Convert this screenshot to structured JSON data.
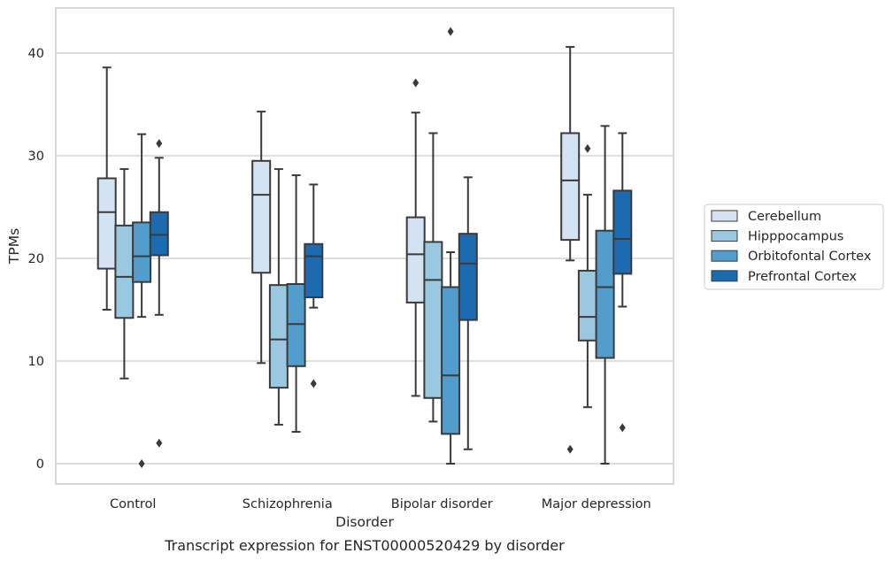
{
  "caption": "Transcript expression for ENST00000520429 by disorder",
  "chart_data": {
    "type": "boxplot",
    "xlabel": "Disorder",
    "ylabel": "TPMs",
    "ylim": [
      -2,
      44.5
    ],
    "yticks": [
      0,
      10,
      20,
      30,
      40
    ],
    "grid": true,
    "legend_position": "right",
    "categories": [
      "Control",
      "Schizophrenia",
      "Bipolar disorder",
      "Major depression"
    ],
    "series": [
      {
        "name": "Cerebellum",
        "color": "#d3e3f3",
        "boxes": [
          {
            "whislo": 15.0,
            "q1": 19.0,
            "med": 24.5,
            "q3": 27.8,
            "whishi": 38.6,
            "fliers": []
          },
          {
            "whislo": 9.8,
            "q1": 18.6,
            "med": 26.2,
            "q3": 29.5,
            "whishi": 34.3,
            "fliers": []
          },
          {
            "whislo": 6.6,
            "q1": 15.7,
            "med": 20.4,
            "q3": 24.0,
            "whishi": 34.2,
            "fliers": [
              37.1
            ]
          },
          {
            "whislo": 19.8,
            "q1": 21.8,
            "med": 27.6,
            "q3": 32.2,
            "whishi": 40.6,
            "fliers": [
              1.4
            ]
          }
        ]
      },
      {
        "name": "Hipppocampus",
        "color": "#9ac8e0",
        "boxes": [
          {
            "whislo": 8.3,
            "q1": 14.2,
            "med": 18.2,
            "q3": 23.2,
            "whishi": 28.7,
            "fliers": []
          },
          {
            "whislo": 3.8,
            "q1": 7.4,
            "med": 12.1,
            "q3": 17.4,
            "whishi": 28.7,
            "fliers": []
          },
          {
            "whislo": 4.1,
            "q1": 6.4,
            "med": 17.9,
            "q3": 21.6,
            "whishi": 32.2,
            "fliers": []
          },
          {
            "whislo": 5.5,
            "q1": 12.0,
            "med": 14.3,
            "q3": 18.8,
            "whishi": 26.2,
            "fliers": [
              30.7
            ]
          }
        ]
      },
      {
        "name": "Orbitofontal Cortex",
        "color": "#529dcc",
        "boxes": [
          {
            "whislo": 14.3,
            "q1": 17.7,
            "med": 20.2,
            "q3": 23.5,
            "whishi": 32.1,
            "fliers": [
              0.0
            ]
          },
          {
            "whislo": 3.1,
            "q1": 9.5,
            "med": 13.6,
            "q3": 17.5,
            "whishi": 28.1,
            "fliers": []
          },
          {
            "whislo": 0.0,
            "q1": 2.9,
            "med": 8.6,
            "q3": 17.2,
            "whishi": 20.6,
            "fliers": [
              42.1
            ]
          },
          {
            "whislo": 0.0,
            "q1": 10.3,
            "med": 17.2,
            "q3": 22.7,
            "whishi": 32.9,
            "fliers": []
          }
        ]
      },
      {
        "name": "Prefrontal Cortex",
        "color": "#1c6aaf",
        "boxes": [
          {
            "whislo": 14.5,
            "q1": 20.3,
            "med": 22.3,
            "q3": 24.5,
            "whishi": 29.8,
            "fliers": [
              31.2,
              2.0
            ]
          },
          {
            "whislo": 15.2,
            "q1": 16.2,
            "med": 20.2,
            "q3": 21.4,
            "whishi": 27.2,
            "fliers": [
              7.8
            ]
          },
          {
            "whislo": 1.4,
            "q1": 14.0,
            "med": 19.5,
            "q3": 22.4,
            "whishi": 27.9,
            "fliers": []
          },
          {
            "whislo": 15.3,
            "q1": 18.5,
            "med": 21.9,
            "q3": 26.6,
            "whishi": 32.2,
            "fliers": [
              3.5
            ]
          }
        ]
      }
    ]
  }
}
